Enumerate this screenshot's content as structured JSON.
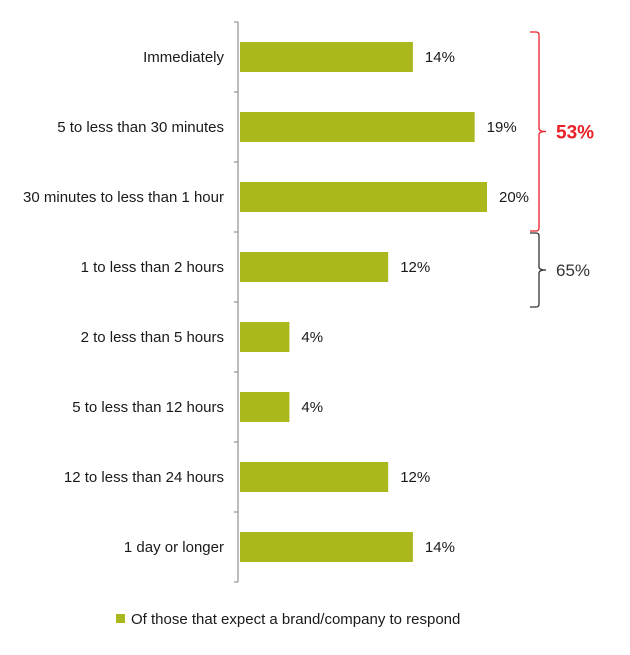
{
  "chart_data": {
    "type": "bar",
    "orientation": "horizontal",
    "categories": [
      "Immediately",
      "5 to less than 30 minutes",
      "30 minutes to less than 1 hour",
      "1  to less than 2 hours",
      "2 to less than 5 hours",
      "5 to less than 12 hours",
      "12 to less than 24 hours",
      "1 day or longer"
    ],
    "series": [
      {
        "name": "Of those that expect a brand/company to respond",
        "values": [
          14,
          19,
          20,
          12,
          4,
          4,
          12,
          14
        ],
        "labels": [
          "14%",
          "19%",
          "20%",
          "12%",
          "4%",
          "4%",
          "12%",
          "14%"
        ]
      }
    ],
    "xlim": [
      0,
      30
    ],
    "grid": false,
    "legend_position": "bottom",
    "colors": {
      "bar": "#aab81e",
      "axis": "#999999",
      "brace_red": "#e8202a",
      "brace_dark": "#333333"
    },
    "annotations": [
      {
        "label": "53%",
        "from_category": 0,
        "to_category": 2,
        "color": "#e8202a"
      },
      {
        "label": "65%",
        "from_category": 2,
        "to_category": 3,
        "color": "#333333"
      }
    ]
  }
}
